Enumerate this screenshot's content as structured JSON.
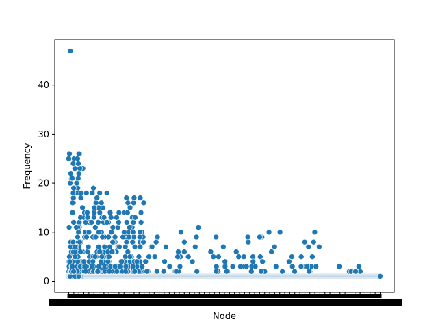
{
  "chart_data": {
    "type": "scatter",
    "title": "",
    "xlabel": "Node",
    "ylabel": "Frequency",
    "ylim": [
      -2.3,
      49.3
    ],
    "yticks": [
      0,
      10,
      20,
      30,
      40
    ],
    "grid": false,
    "legend": "none",
    "marker_color": "#1f77b4",
    "marker_edge": "#ffffff",
    "x_tick_labels": "dense, overlapping node labels",
    "point_groups": [
      {
        "name": "dense-band",
        "x_range": [
          0,
          3
        ],
        "freq_range": [
          1,
          8
        ],
        "count_hint": 60
      },
      {
        "name": "early-nodes",
        "x_range": [
          0,
          3
        ],
        "freq_range": [
          2,
          26
        ],
        "count_hint": 90
      },
      {
        "name": "mid-nodes",
        "x_range": [
          3,
          8
        ],
        "freq_range": [
          2,
          19
        ],
        "count_hint": 120
      },
      {
        "name": "late-nodes",
        "x_range": [
          8,
          15
        ],
        "freq_range": [
          2,
          17
        ],
        "count_hint": 130
      },
      {
        "name": "tail-nodes",
        "x_range": [
          15,
          50
        ],
        "freq_range": [
          2,
          11
        ],
        "count_hint": 90
      },
      {
        "name": "sparse-tail",
        "x_range": [
          50,
          62
        ],
        "freq_range": [
          2,
          3
        ],
        "count_hint": 6
      }
    ],
    "highlights": [
      {
        "x": 0.3,
        "y": 47
      },
      {
        "x": 0.0,
        "y": 25
      },
      {
        "x": 0.4,
        "y": 22
      },
      {
        "x": 2.0,
        "y": 26
      },
      {
        "x": 1.9,
        "y": 24
      },
      {
        "x": 4.9,
        "y": 19
      },
      {
        "x": 13.0,
        "y": 17
      },
      {
        "x": 25.8,
        "y": 11
      },
      {
        "x": 38.0,
        "y": 9
      },
      {
        "x": 62.0,
        "y": 1
      }
    ],
    "baseline_y": 1
  }
}
